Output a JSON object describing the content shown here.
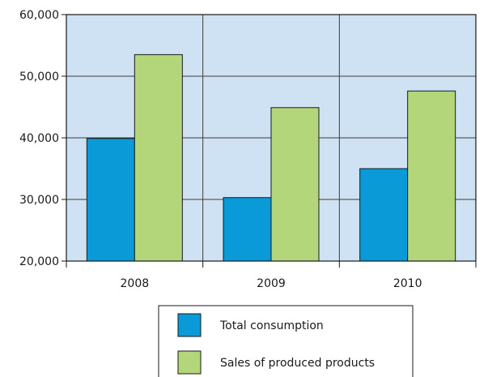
{
  "chart_data": {
    "type": "bar",
    "categories": [
      "2008",
      "2009",
      "2010"
    ],
    "series": [
      {
        "name": "Total consumption",
        "values": [
          39900,
          30300,
          35000
        ],
        "color": "#0a9ad8"
      },
      {
        "name": "Sales of produced products",
        "values": [
          53500,
          44900,
          47600
        ],
        "color": "#b3d67b"
      }
    ],
    "title": "",
    "xlabel": "",
    "ylabel": "",
    "ylim": [
      20000,
      60000
    ],
    "yticks": [
      "20,000",
      "30,000",
      "40,000",
      "50,000",
      "60,000"
    ],
    "ytick_values": [
      20000,
      30000,
      40000,
      50000,
      60000
    ],
    "grid": true,
    "plot_background": "#cfe2f3",
    "legend_position": "bottom"
  }
}
